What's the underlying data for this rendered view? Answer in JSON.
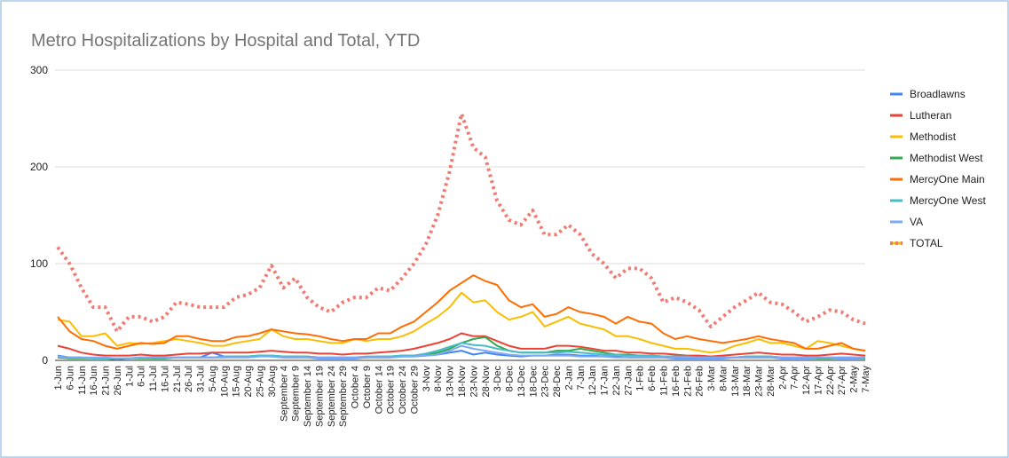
{
  "chart_data": {
    "type": "line",
    "title": "Metro Hospitalizations by Hospital and Total, YTD",
    "categories": [
      "1-Jun",
      "6-Jun",
      "11-Jun",
      "16-Jun",
      "21-Jun",
      "26-Jun",
      "1-Jul",
      "6-Jul",
      "11-Jul",
      "16-Jul",
      "21-Jul",
      "26-Jul",
      "31-Jul",
      "5-Aug",
      "10-Aug",
      "15-Aug",
      "20-Aug",
      "25-Aug",
      "30-Aug",
      "September 4",
      "September 9",
      "September 14",
      "September 19",
      "September 24",
      "September 29",
      "October 4",
      "October 9",
      "October 14",
      "October 19",
      "October 24",
      "October 29",
      "3-Nov",
      "8-Nov",
      "13-Nov",
      "18-Nov",
      "23-Nov",
      "28-Nov",
      "3-Dec",
      "8-Dec",
      "13-Dec",
      "18-Dec",
      "23-Dec",
      "28-Dec",
      "2-Jan",
      "7-Jan",
      "12-Jan",
      "17-Jan",
      "22-Jan",
      "27-Jan",
      "1-Feb",
      "6-Feb",
      "11-Feb",
      "16-Feb",
      "21-Feb",
      "26-Feb",
      "3-Mar",
      "8-Mar",
      "13-Mar",
      "18-Mar",
      "23-Mar",
      "28-Mar",
      "2-Apr",
      "7-Apr",
      "12-Apr",
      "17-Apr",
      "22-Apr",
      "27-Apr",
      "2-May",
      "7-May"
    ],
    "ylim": [
      0,
      300
    ],
    "yticks": [
      0,
      100,
      200,
      300
    ],
    "grid": true,
    "series": [
      {
        "name": "Broadlawns",
        "color": "#4285f4",
        "values": [
          5,
          3,
          3,
          2,
          2,
          2,
          2,
          3,
          2,
          2,
          3,
          3,
          3,
          8,
          4,
          4,
          4,
          5,
          4,
          3,
          3,
          3,
          2,
          2,
          2,
          2,
          3,
          3,
          3,
          4,
          4,
          5,
          6,
          8,
          10,
          6,
          8,
          6,
          5,
          4,
          5,
          5,
          6,
          6,
          5,
          5,
          4,
          4,
          3,
          3,
          3,
          3,
          2,
          2,
          2,
          2,
          2,
          3,
          3,
          3,
          3,
          2,
          2,
          2,
          2,
          2,
          2,
          2,
          2
        ]
      },
      {
        "name": "Lutheran",
        "color": "#ea4335",
        "values": [
          15,
          12,
          8,
          6,
          5,
          5,
          5,
          6,
          5,
          5,
          6,
          7,
          7,
          8,
          8,
          8,
          8,
          9,
          10,
          9,
          8,
          8,
          7,
          7,
          6,
          7,
          7,
          8,
          9,
          10,
          12,
          15,
          18,
          22,
          28,
          25,
          25,
          20,
          15,
          12,
          12,
          12,
          15,
          15,
          14,
          12,
          10,
          10,
          8,
          8,
          7,
          7,
          6,
          5,
          5,
          4,
          5,
          6,
          7,
          8,
          7,
          6,
          6,
          5,
          5,
          6,
          7,
          6,
          5
        ]
      },
      {
        "name": "Methodist",
        "color": "#fbbc04",
        "values": [
          42,
          40,
          25,
          25,
          28,
          15,
          18,
          17,
          18,
          20,
          22,
          20,
          18,
          15,
          15,
          18,
          20,
          22,
          32,
          25,
          22,
          22,
          20,
          18,
          18,
          22,
          20,
          22,
          22,
          25,
          30,
          38,
          45,
          55,
          70,
          60,
          62,
          50,
          42,
          45,
          50,
          35,
          40,
          45,
          38,
          35,
          32,
          25,
          25,
          22,
          18,
          15,
          12,
          12,
          10,
          8,
          10,
          15,
          18,
          22,
          18,
          18,
          15,
          12,
          20,
          18,
          15,
          12,
          10
        ]
      },
      {
        "name": "Methodist West",
        "color": "#34a853",
        "values": [
          3,
          2,
          2,
          2,
          2,
          1,
          2,
          2,
          2,
          2,
          3,
          3,
          3,
          3,
          3,
          4,
          4,
          5,
          5,
          4,
          4,
          4,
          3,
          3,
          3,
          3,
          3,
          4,
          4,
          5,
          5,
          6,
          8,
          12,
          18,
          22,
          24,
          15,
          10,
          8,
          8,
          8,
          10,
          10,
          12,
          10,
          8,
          6,
          6,
          5,
          5,
          4,
          4,
          3,
          3,
          3,
          3,
          3,
          4,
          4,
          4,
          3,
          3,
          3,
          2,
          2,
          3,
          3,
          2
        ]
      },
      {
        "name": "MercyOne Main",
        "color": "#ff6d01",
        "values": [
          45,
          30,
          22,
          20,
          15,
          12,
          15,
          18,
          17,
          18,
          25,
          25,
          22,
          20,
          20,
          24,
          25,
          28,
          32,
          30,
          28,
          27,
          25,
          22,
          20,
          22,
          22,
          28,
          28,
          35,
          40,
          50,
          60,
          72,
          80,
          88,
          82,
          78,
          62,
          55,
          58,
          45,
          48,
          55,
          50,
          48,
          45,
          38,
          45,
          40,
          38,
          28,
          22,
          25,
          22,
          20,
          18,
          20,
          22,
          25,
          22,
          20,
          18,
          12,
          12,
          15,
          18,
          12,
          10
        ]
      },
      {
        "name": "MercyOne West",
        "color": "#46bdc6",
        "values": [
          4,
          3,
          3,
          2,
          2,
          2,
          2,
          3,
          3,
          3,
          3,
          3,
          3,
          3,
          4,
          4,
          4,
          5,
          5,
          4,
          4,
          4,
          3,
          3,
          3,
          3,
          4,
          4,
          4,
          5,
          5,
          7,
          10,
          14,
          18,
          16,
          15,
          12,
          10,
          8,
          8,
          8,
          8,
          9,
          8,
          7,
          6,
          6,
          5,
          5,
          5,
          4,
          4,
          4,
          3,
          3,
          3,
          3,
          4,
          4,
          4,
          3,
          3,
          3,
          3,
          3,
          3,
          3,
          3
        ]
      },
      {
        "name": "VA",
        "color": "#7baaf7",
        "values": [
          4,
          3,
          3,
          3,
          3,
          2,
          2,
          3,
          3,
          3,
          3,
          3,
          3,
          3,
          3,
          3,
          3,
          4,
          4,
          3,
          3,
          3,
          3,
          3,
          3,
          3,
          3,
          3,
          3,
          4,
          4,
          5,
          6,
          10,
          15,
          12,
          10,
          8,
          6,
          5,
          5,
          5,
          5,
          5,
          4,
          4,
          4,
          3,
          3,
          3,
          3,
          3,
          3,
          3,
          3,
          3,
          3,
          3,
          3,
          3,
          3,
          3,
          3,
          3,
          3,
          3,
          3,
          3,
          3
        ]
      },
      {
        "name": "TOTAL",
        "color": "#f07b72",
        "dashed": true,
        "values": [
          117,
          100,
          75,
          55,
          55,
          30,
          45,
          45,
          40,
          45,
          60,
          58,
          55,
          55,
          55,
          65,
          68,
          75,
          98,
          75,
          85,
          65,
          55,
          50,
          60,
          65,
          65,
          75,
          72,
          85,
          100,
          120,
          150,
          195,
          255,
          220,
          210,
          165,
          145,
          140,
          155,
          130,
          130,
          140,
          130,
          110,
          100,
          85,
          95,
          95,
          85,
          60,
          65,
          60,
          52,
          35,
          45,
          55,
          62,
          70,
          60,
          58,
          50,
          40,
          45,
          52,
          50,
          42,
          38
        ]
      }
    ]
  }
}
